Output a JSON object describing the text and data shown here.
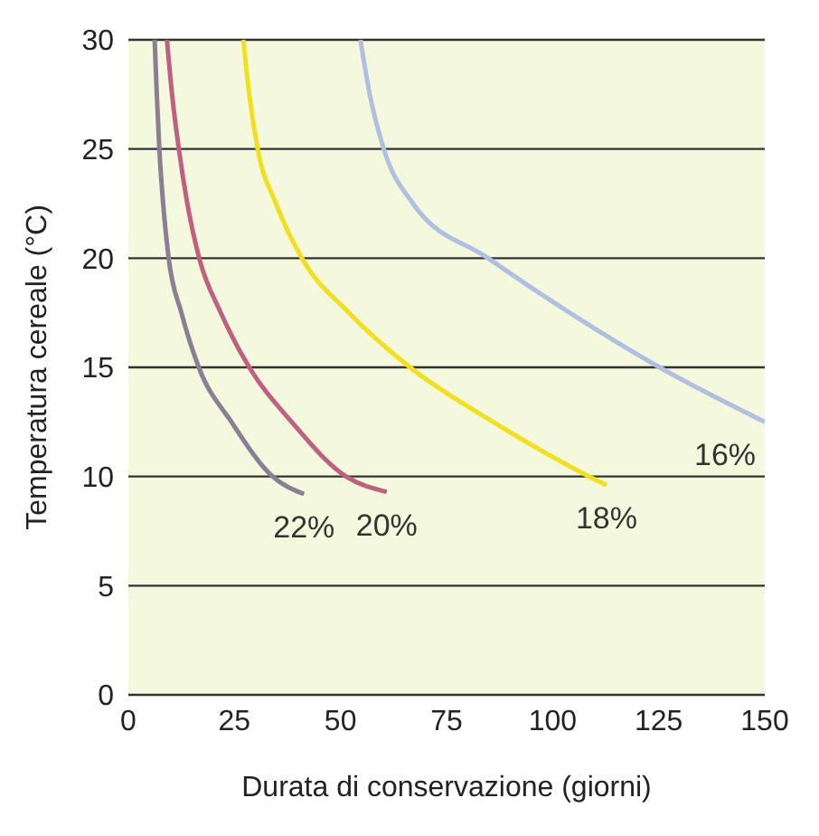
{
  "chart_data": {
    "type": "line",
    "xlabel": "Durata di conservazione (giorni)",
    "ylabel": "Temperatura cereale (°C)",
    "xlim": [
      0,
      150
    ],
    "xticks": [
      0,
      25,
      50,
      75,
      100,
      125,
      150
    ],
    "ylim": [
      0,
      30
    ],
    "yticks": [
      0,
      5,
      10,
      15,
      20,
      25,
      30
    ],
    "grid": "y",
    "marker": "none",
    "line_style": "solid",
    "series": [
      {
        "name": "22%",
        "color": "#8a7f95",
        "x": [
          6.2,
          6.7,
          7.3,
          8.2,
          9.5,
          12.5,
          16.6,
          24.3,
          34,
          41.4
        ],
        "values": [
          30,
          27.5,
          25,
          22.5,
          20,
          17.5,
          15,
          12.5,
          10,
          9.2
        ]
      },
      {
        "name": "20%",
        "color": "#c06080",
        "x": [
          9.1,
          10.3,
          11.9,
          13.9,
          16.7,
          21.8,
          28.5,
          38.5,
          51.3,
          60.9
        ],
        "values": [
          30,
          27.5,
          25,
          22.5,
          20,
          17.5,
          15,
          12.5,
          10,
          9.3
        ]
      },
      {
        "name": "18%",
        "color": "#f2e020",
        "x": [
          27.1,
          28.5,
          30.5,
          34.8,
          40.9,
          52,
          66.4,
          86,
          108.6,
          112.7
        ],
        "values": [
          30,
          27.5,
          25,
          22.5,
          20,
          17.5,
          15,
          12.5,
          10,
          9.6
        ]
      },
      {
        "name": "16%",
        "color": "#b0c0e0",
        "x": [
          54.7,
          56.9,
          60.2,
          67.1,
          84.8,
          104,
          125.2,
          150
        ],
        "values": [
          30,
          27.5,
          25,
          22.5,
          20,
          17.5,
          15,
          12.5
        ]
      }
    ]
  }
}
